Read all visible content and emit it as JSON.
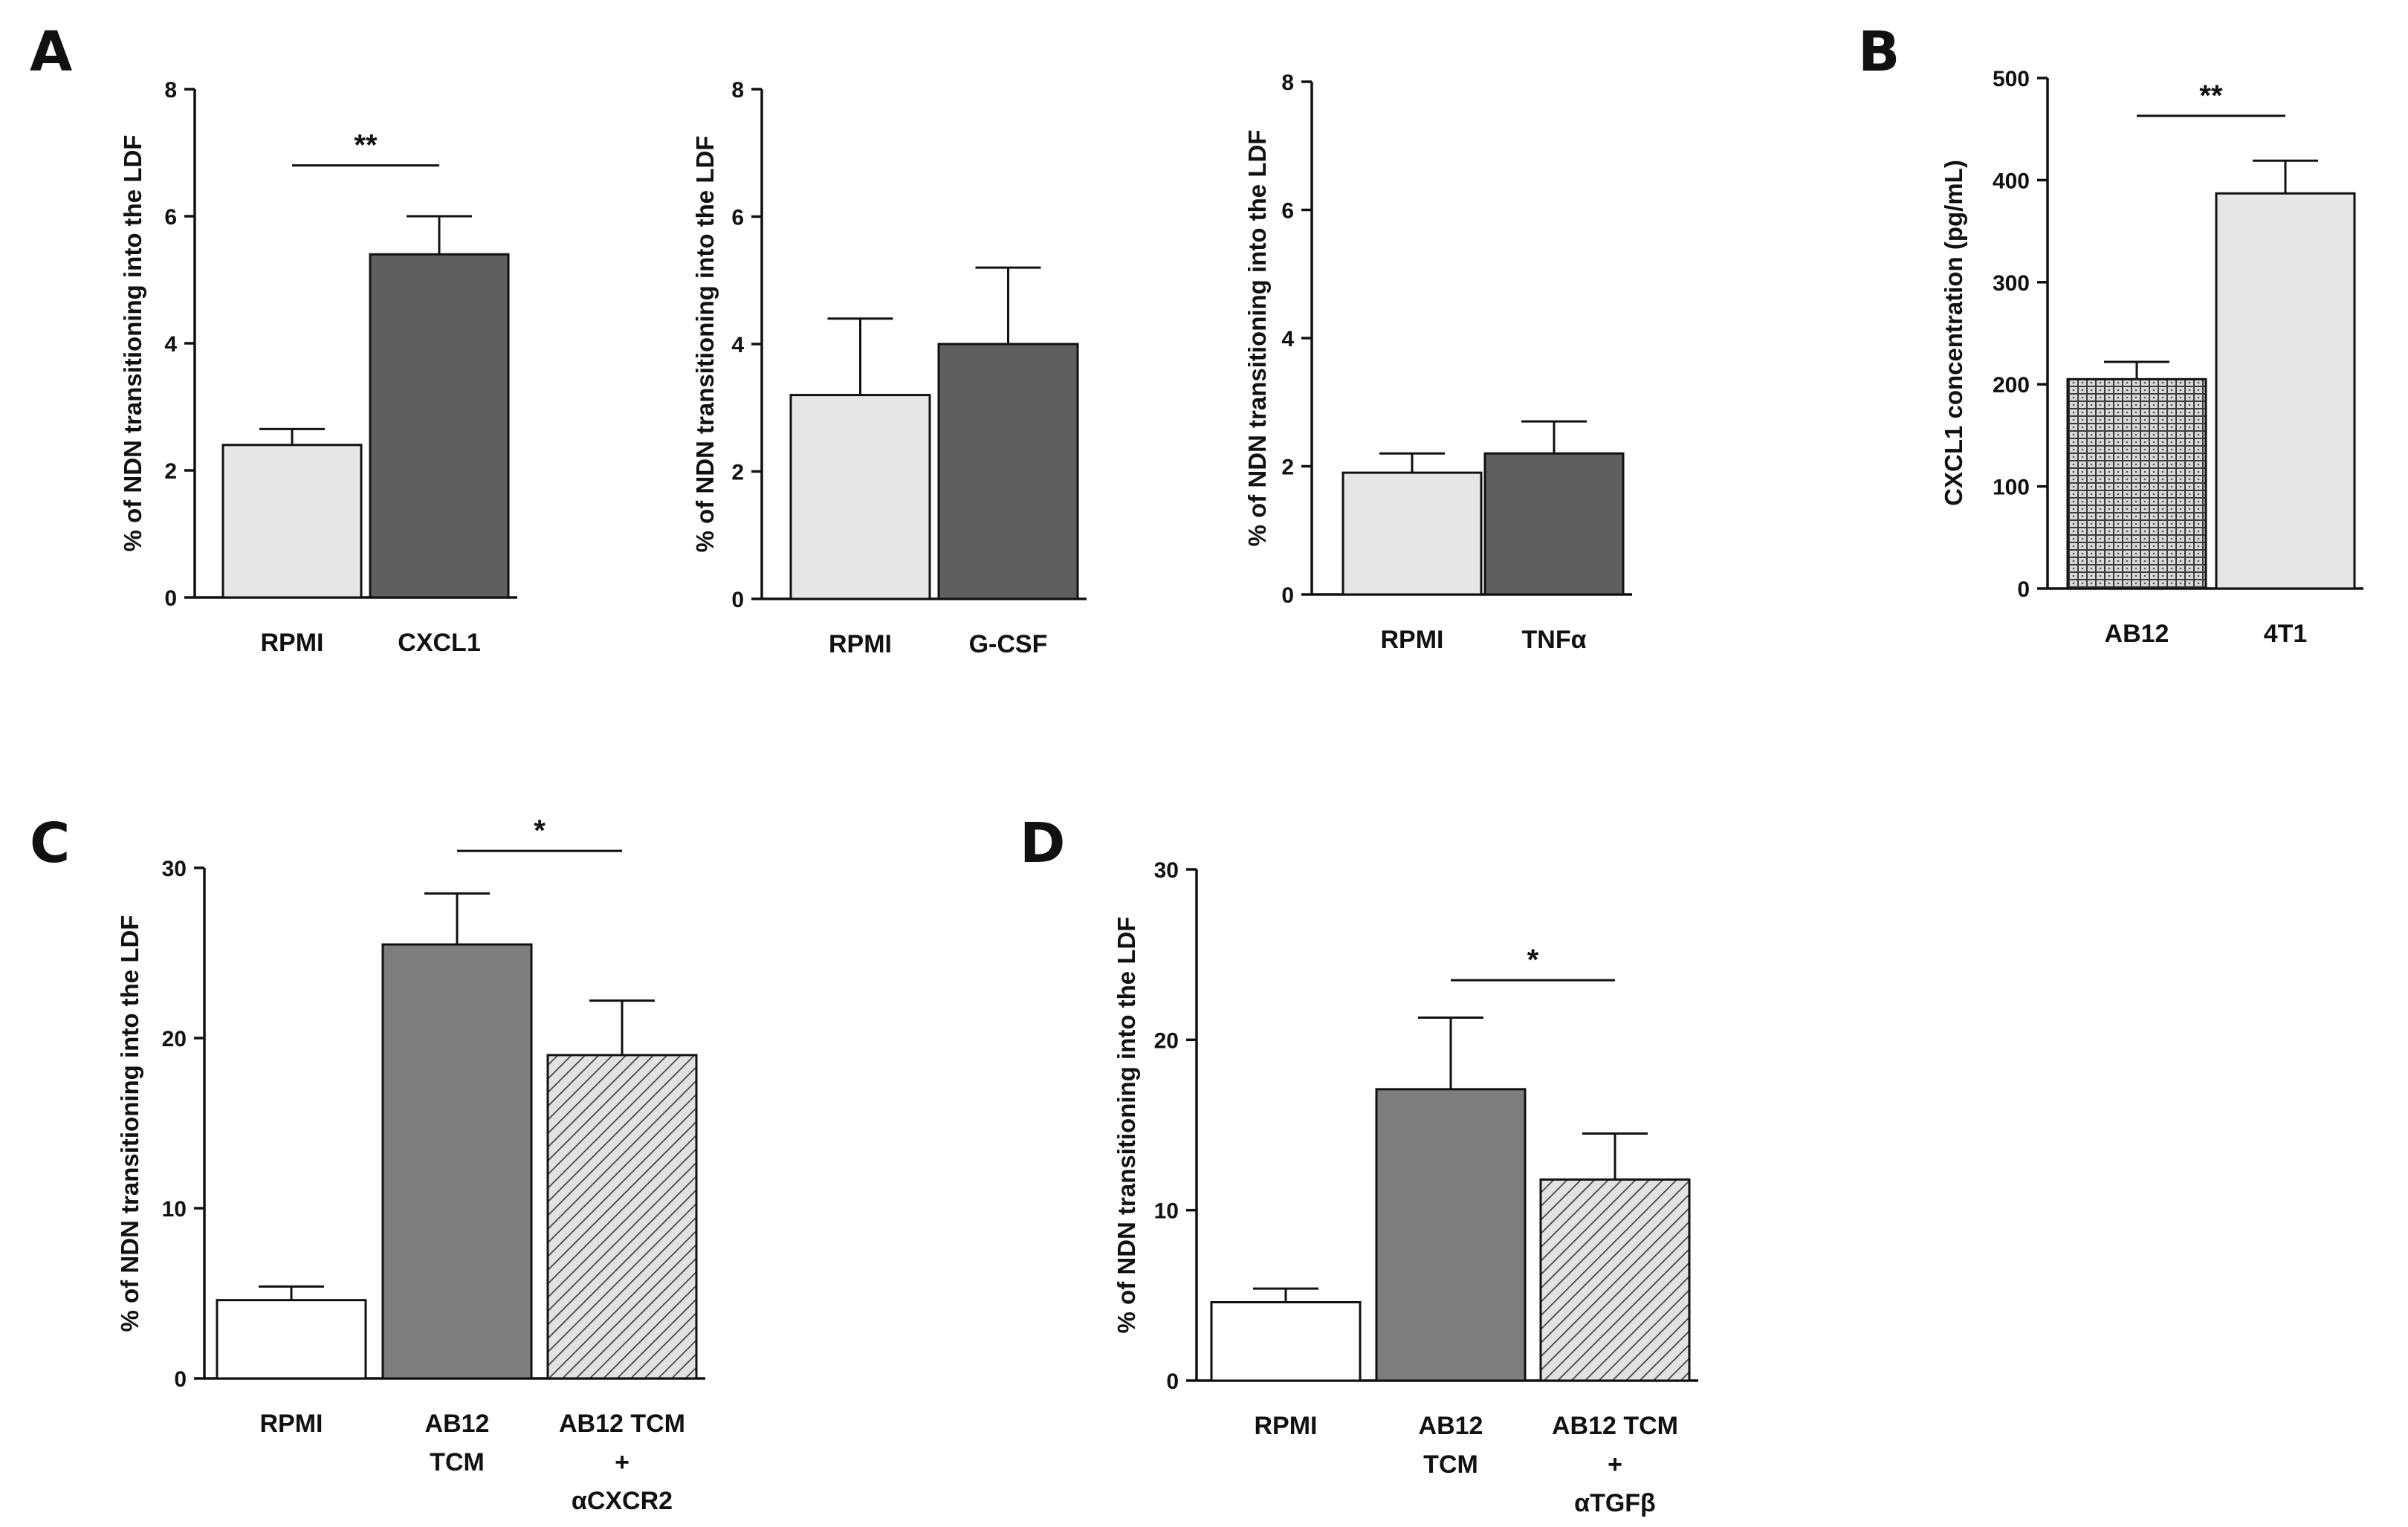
{
  "palette": {
    "light": "#e6e6e6",
    "dark": "#5f5f5f",
    "mid": "#7e7e7e",
    "white": "#ffffff",
    "axis": "#111111"
  },
  "chart_data": [
    {
      "id": "A1",
      "panel": "A",
      "type": "bar",
      "ylabel": "% of NDN transitioning into the LDF",
      "ylim": [
        0,
        8
      ],
      "ticks": [
        0,
        2,
        4,
        6,
        8
      ],
      "categories": [
        [
          "RPMI"
        ],
        [
          "CXCL1"
        ]
      ],
      "values": [
        2.4,
        5.4
      ],
      "errors": [
        0.25,
        0.6
      ],
      "fills": [
        "light",
        "dark"
      ],
      "sig": [
        {
          "label": "**",
          "from": 0,
          "to": 1,
          "y": 6.8
        }
      ]
    },
    {
      "id": "A2",
      "type": "bar",
      "ylabel": "% of NDN transitioning into the LDF",
      "ylim": [
        0,
        8
      ],
      "ticks": [
        0,
        2,
        4,
        6,
        8
      ],
      "categories": [
        [
          "RPMI"
        ],
        [
          "G-CSF"
        ]
      ],
      "values": [
        3.2,
        4.0
      ],
      "errors": [
        1.2,
        1.2
      ],
      "fills": [
        "light",
        "dark"
      ],
      "sig": []
    },
    {
      "id": "A3",
      "type": "bar",
      "ylabel": "% of NDN transitioning into the LDF",
      "ylim": [
        0,
        8
      ],
      "ticks": [
        0,
        2,
        4,
        6,
        8
      ],
      "categories": [
        [
          "RPMI"
        ],
        [
          "TNFα"
        ]
      ],
      "values": [
        1.9,
        2.2
      ],
      "errors": [
        0.3,
        0.5
      ],
      "fills": [
        "light",
        "dark"
      ],
      "sig": []
    },
    {
      "id": "B",
      "panel": "B",
      "type": "bar",
      "ylabel": "CXCL1 concentration (pg/mL)",
      "ylim": [
        0,
        500
      ],
      "ticks": [
        0,
        100,
        200,
        300,
        400,
        500
      ],
      "categories": [
        [
          "AB12"
        ],
        [
          "4T1"
        ]
      ],
      "values": [
        205,
        387
      ],
      "errors": [
        17,
        32
      ],
      "fills": [
        "grid",
        "light"
      ],
      "sig": [
        {
          "label": "**",
          "from": 0,
          "to": 1,
          "y": 463
        }
      ]
    },
    {
      "id": "C",
      "panel": "C",
      "type": "bar",
      "ylabel": "% of NDN transitioning into the LDF",
      "ylim": [
        0,
        30
      ],
      "ticks": [
        0,
        10,
        20,
        30
      ],
      "categories": [
        [
          "RPMI"
        ],
        [
          "AB12",
          "TCM"
        ],
        [
          "AB12 TCM",
          "+",
          "αCXCR2"
        ]
      ],
      "values": [
        4.6,
        25.5,
        19.0
      ],
      "errors": [
        0.8,
        3.0,
        3.2
      ],
      "fills": [
        "white",
        "mid",
        "hatch"
      ],
      "sig": [
        {
          "label": "*",
          "from": 1,
          "to": 2,
          "y": 31
        }
      ]
    },
    {
      "id": "D",
      "panel": "D",
      "type": "bar",
      "ylabel": "% of NDN transitioning into the LDF",
      "ylim": [
        0,
        30
      ],
      "ticks": [
        0,
        10,
        20,
        30
      ],
      "categories": [
        [
          "RPMI"
        ],
        [
          "AB12",
          "TCM"
        ],
        [
          "AB12 TCM",
          "+",
          "αTGFβ"
        ]
      ],
      "values": [
        4.6,
        17.1,
        11.8
      ],
      "errors": [
        0.8,
        4.2,
        2.7
      ],
      "fills": [
        "white",
        "mid",
        "hatch"
      ],
      "sig": [
        {
          "label": "*",
          "from": 1,
          "to": 2,
          "y": 23.5
        }
      ]
    }
  ]
}
